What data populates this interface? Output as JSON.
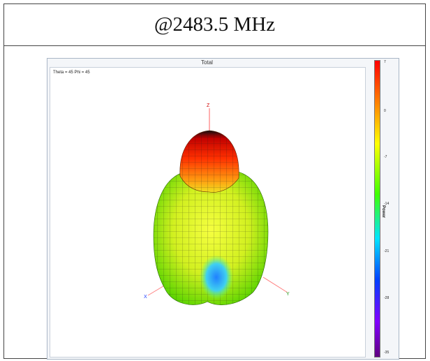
{
  "header": {
    "title": "@2483.5 MHz"
  },
  "window": {
    "title": "Total",
    "angle_text": "Theta = 45 Phi = 45"
  },
  "axes": {
    "z": "Z",
    "x": "X",
    "y": "Y"
  },
  "colorbar": {
    "label": "Power",
    "ticks": [
      "7",
      "0",
      "-7",
      "-14",
      "-21",
      "-28",
      "-35"
    ],
    "colors": [
      "#ff0000",
      "#ff8000",
      "#ffff00",
      "#40ff00",
      "#00e5ff",
      "#0040ff",
      "#8000ff",
      "#600080"
    ]
  }
}
